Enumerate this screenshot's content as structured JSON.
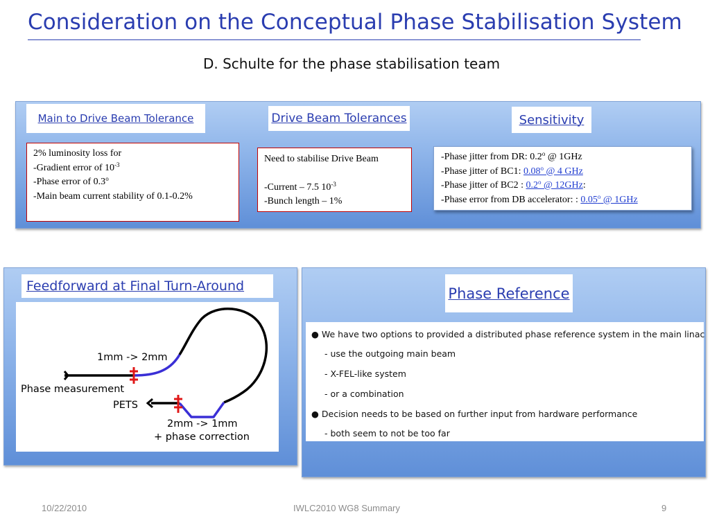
{
  "title": "Consideration on the Conceptual Phase Stabilisation System",
  "subtitle": "D. Schulte for the phase stabilisation team",
  "top_panel": {
    "main_header": "Main to Drive Beam Tolerance",
    "drive_header": "Drive Beam Tolerances",
    "sens_header": "Sensitivity",
    "main_box": {
      "line1": "2% luminosity loss for",
      "line2": "-Gradient error of 10",
      "line2_sup": "-3",
      "line3": "-Phase error of 0.3",
      "line3_sup": "o",
      "line4": "-Main beam current stability of 0.1-0.2%"
    },
    "drive_box": {
      "line1": "Need to stabilise Drive Beam",
      "line2": "-Current – 7.5 10",
      "line2_sup": "-3",
      "line3": "-Bunch length – 1%"
    },
    "sens_box": {
      "l1_a": "-Phase jitter from DR: 0.2",
      "l1_sup": "o",
      "l1_b": " @ 1GHz",
      "l2_a": "-Phase jitter of BC1: ",
      "l2_link_a": "0.08",
      "l2_sup": "o",
      "l2_link_b": " @ 4 GHz",
      "l3_a": "-Phase jitter of BC2 : ",
      "l3_link_a": "0.2",
      "l3_sup": "o",
      "l3_link_b": " @ 12GHz",
      "l3_b": ":",
      "l4_a": "-Phase error from DB accelerator: : ",
      "l4_link_a": "0.05",
      "l4_sup": "o",
      "l4_link_b": " @ 1GHz"
    }
  },
  "feedforward": {
    "header": "Feedforward at Final Turn-Around",
    "label_1mm_2mm": "1mm -> 2mm",
    "label_phase_measurement": "Phase measurement",
    "label_pets": "PETS",
    "label_2mm_1mm": "2mm -> 1mm",
    "label_phase_correction": "+ phase correction"
  },
  "phase_reference": {
    "header": "Phase Reference",
    "items": [
      "We have two options to provided a distributed phase reference system in the main linac",
      "- use the outgoing main beam",
      "- X-FEL-like system",
      "- or a combination",
      "Decision needs to be based on further input from hardware performance",
      "- both seem to not be too far"
    ]
  },
  "footer": {
    "date": "10/22/2010",
    "center": "IWLC2010 WG8 Summary",
    "page": "9"
  },
  "colors": {
    "title_blue": "#2a3db0",
    "box_border_red": "#c00000",
    "link_blue": "#1f3cd0",
    "diagram_blue": "#3a2fd6",
    "diagram_red": "#e01818"
  }
}
